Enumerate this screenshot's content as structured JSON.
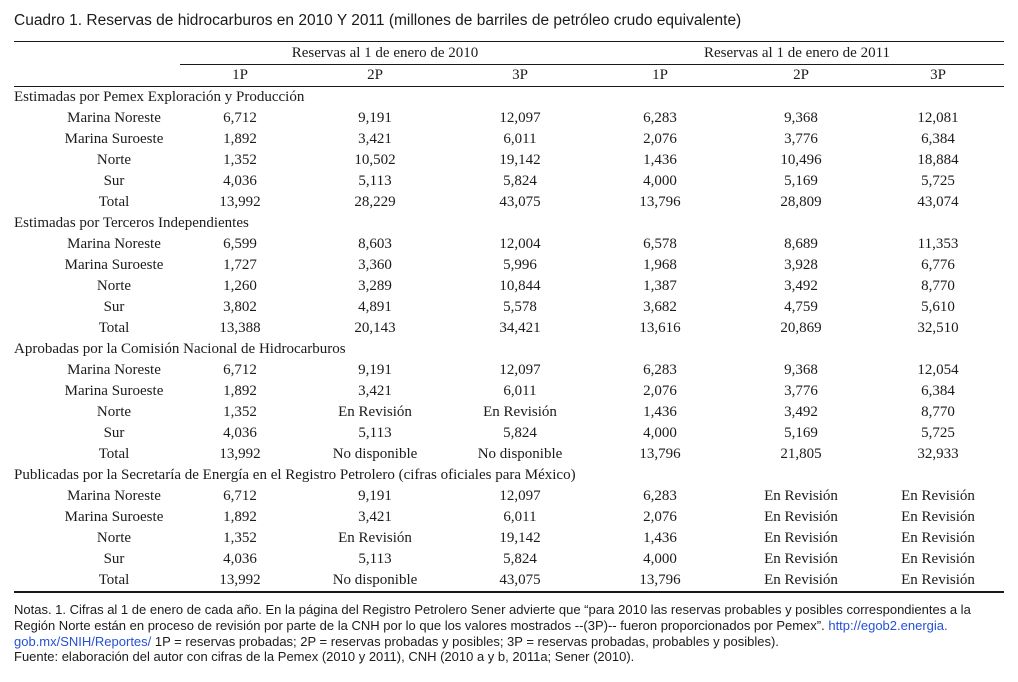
{
  "page": {
    "title": "Cuadro 1. Reservas de hidrocarburos en 2010 Y 2011 (millones de barriles de petróleo crudo equivalente)"
  },
  "colors": {
    "text": "#1b1b1b",
    "rule": "#1a1a1a",
    "link_blue": "#2451d8"
  },
  "table": {
    "group_headers": [
      "Reservas al 1 de enero de 2010",
      "Reservas al 1 de enero de 2011"
    ],
    "sub_headers": [
      "1P",
      "2P",
      "3P",
      "1P",
      "2P",
      "3P"
    ],
    "sections": [
      {
        "header": "Estimadas por Pemex Exploración y Producción",
        "rows": [
          {
            "label": "Marina Noreste",
            "values": [
              "6,712",
              "9,191",
              "12,097",
              "6,283",
              "9,368",
              "12,081"
            ]
          },
          {
            "label": "Marina Suroeste",
            "values": [
              "1,892",
              "3,421",
              "6,011",
              "2,076",
              "3,776",
              "6,384"
            ]
          },
          {
            "label": "Norte",
            "values": [
              "1,352",
              "10,502",
              "19,142",
              "1,436",
              "10,496",
              "18,884"
            ]
          },
          {
            "label": "Sur",
            "values": [
              "4,036",
              "5,113",
              "5,824",
              "4,000",
              "5,169",
              "5,725"
            ]
          },
          {
            "label": "Total",
            "values": [
              "13,992",
              "28,229",
              "43,075",
              "13,796",
              "28,809",
              "43,074"
            ]
          }
        ]
      },
      {
        "header": "Estimadas por Terceros Independientes",
        "rows": [
          {
            "label": "Marina Noreste",
            "values": [
              "6,599",
              "8,603",
              "12,004",
              "6,578",
              "8,689",
              "11,353"
            ]
          },
          {
            "label": "Marina Suroeste",
            "values": [
              "1,727",
              "3,360",
              "5,996",
              "1,968",
              "3,928",
              "6,776"
            ]
          },
          {
            "label": "Norte",
            "values": [
              "1,260",
              "3,289",
              "10,844",
              "1,387",
              "3,492",
              "8,770"
            ]
          },
          {
            "label": "Sur",
            "values": [
              "3,802",
              "4,891",
              "5,578",
              "3,682",
              "4,759",
              "5,610"
            ]
          },
          {
            "label": "Total",
            "values": [
              "13,388",
              "20,143",
              "34,421",
              "13,616",
              "20,869",
              "32,510"
            ]
          }
        ]
      },
      {
        "header": "Aprobadas por la Comisión Nacional de Hidrocarburos",
        "rows": [
          {
            "label": "Marina Noreste",
            "values": [
              "6,712",
              "9,191",
              "12,097",
              "6,283",
              "9,368",
              "12,054"
            ]
          },
          {
            "label": "Marina Suroeste",
            "values": [
              "1,892",
              "3,421",
              "6,011",
              "2,076",
              "3,776",
              "6,384"
            ]
          },
          {
            "label": "Norte",
            "values": [
              "1,352",
              "En Revisión",
              "En Revisión",
              "1,436",
              "3,492",
              "8,770"
            ]
          },
          {
            "label": "Sur",
            "values": [
              "4,036",
              "5,113",
              "5,824",
              "4,000",
              "5,169",
              "5,725"
            ]
          },
          {
            "label": "Total",
            "values": [
              "13,992",
              "No disponible",
              "No disponible",
              "13,796",
              "21,805",
              "32,933"
            ]
          }
        ]
      },
      {
        "header": "Publicadas por la Secretaría de Energía en el Registro Petrolero (cifras oficiales para México)",
        "rows": [
          {
            "label": "Marina Noreste",
            "values": [
              "6,712",
              "9,191",
              "12,097",
              "6,283",
              "En Revisión",
              "En Revisión"
            ]
          },
          {
            "label": "Marina Suroeste",
            "values": [
              "1,892",
              "3,421",
              "6,011",
              "2,076",
              "En Revisión",
              "En Revisión"
            ]
          },
          {
            "label": "Norte",
            "values": [
              "1,352",
              "En Revisión",
              "19,142",
              "1,436",
              "En Revisión",
              "En Revisión"
            ]
          },
          {
            "label": "Sur",
            "values": [
              "4,036",
              "5,113",
              "5,824",
              "4,000",
              "En Revisión",
              "En Revisión"
            ]
          },
          {
            "label": "Total",
            "values": [
              "13,992",
              "No disponible",
              "43,075",
              "13,796",
              "En Revisión",
              "En Revisión"
            ]
          }
        ]
      }
    ]
  },
  "notes": {
    "line1": "Notas. 1. Cifras al 1 de enero de cada año. En la página del Registro Petrolero Sener advierte que “para 2010 las reservas probables y posibles correspondientes a la",
    "line2_text": "Región Norte están en proceso de revisión por parte de la CNH por lo que los valores mostrados --(3P)-- fueron proporcionados por Pemex”. ",
    "line2_link": "http://egob2.energia.",
    "line3_link": "gob.mx/SNIH/Reportes/",
    "line3_text": " 1P = reservas probadas; 2P = reservas probadas y posibles; 3P = reservas probadas, probables y posibles).",
    "line4": "Fuente: elaboración del autor con cifras de la Pemex (2010 y 2011), CNH (2010 a y b, 2011a; Sener (2010)."
  }
}
